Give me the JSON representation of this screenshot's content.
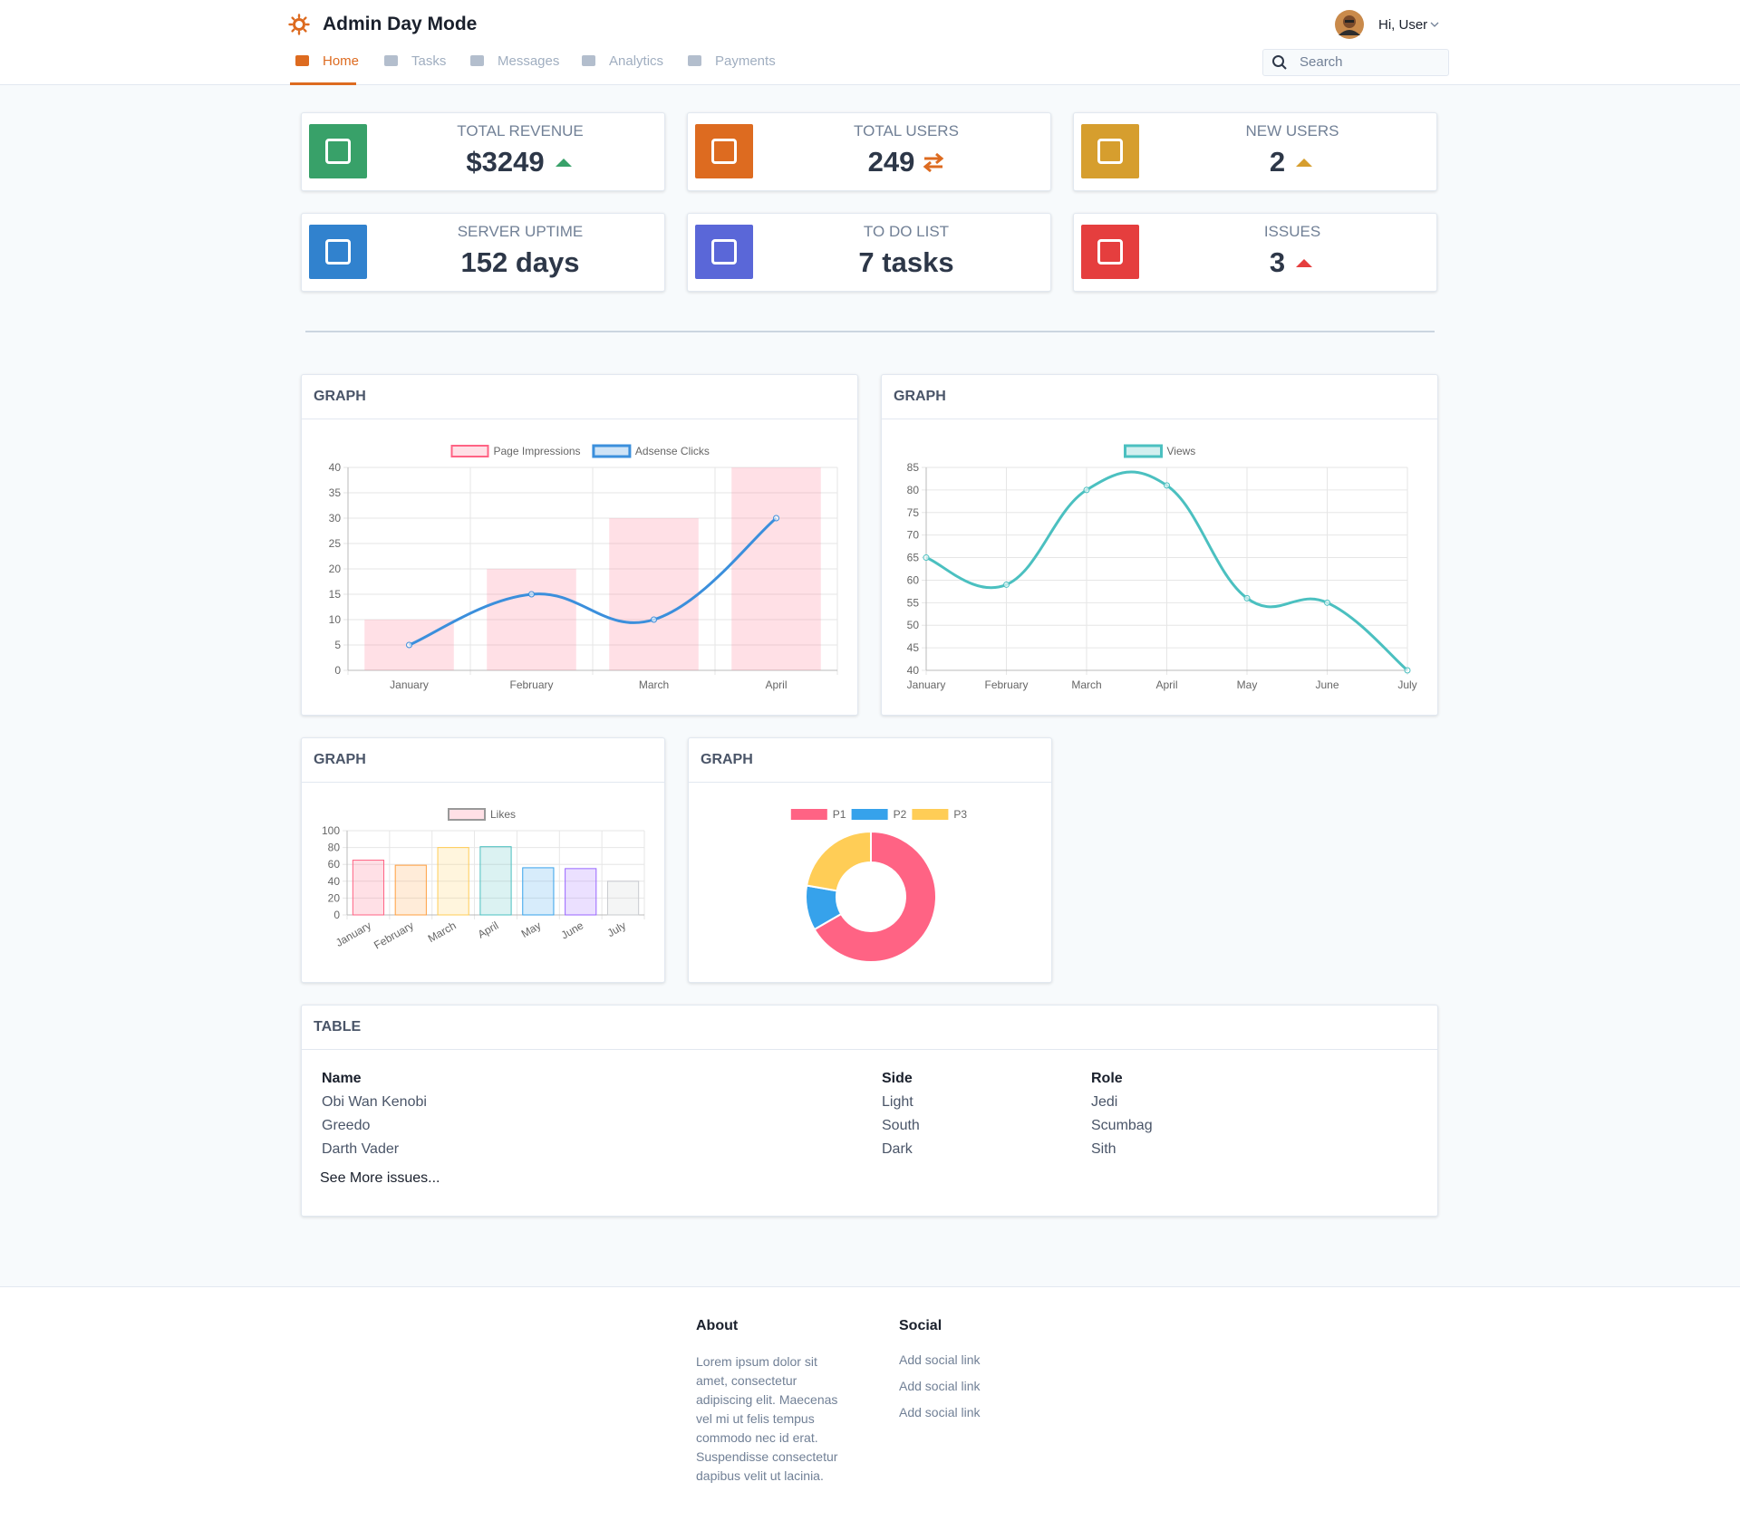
{
  "header": {
    "title": "Admin Day Mode",
    "user": "Hi, User",
    "search_placeholder": "Search"
  },
  "nav": [
    "Home",
    "Tasks",
    "Messages",
    "Analytics",
    "Payments"
  ],
  "stats": [
    {
      "label": "TOTAL REVENUE",
      "value": "$3249"
    },
    {
      "label": "TOTAL USERS",
      "value": "249"
    },
    {
      "label": "NEW USERS",
      "value": "2"
    },
    {
      "label": "SERVER UPTIME",
      "value": "152 days"
    },
    {
      "label": "TO DO LIST",
      "value": "7 tasks"
    },
    {
      "label": "ISSUES",
      "value": "3"
    }
  ],
  "charts": [
    {
      "type": "bar",
      "title": "GRAPH",
      "categories": [
        "January",
        "February",
        "March",
        "April"
      ],
      "series": [
        {
          "name": "Page Impressions",
          "type": "bar",
          "color": "#ff6384",
          "values": [
            10,
            20,
            30,
            40
          ]
        },
        {
          "name": "Adsense Clicks",
          "type": "line",
          "color": "#3b8fdc",
          "values": [
            5,
            15,
            10,
            30
          ]
        }
      ],
      "ylim": [
        0,
        40
      ],
      "yticks": [
        0,
        5,
        10,
        15,
        20,
        25,
        30,
        35,
        40
      ],
      "grid": true
    },
    {
      "type": "line",
      "title": "GRAPH",
      "categories": [
        "January",
        "February",
        "March",
        "April",
        "May",
        "June",
        "July"
      ],
      "series": [
        {
          "name": "Views",
          "color": "#4bc0c0",
          "values": [
            65,
            59,
            80,
            81,
            56,
            55,
            40
          ]
        }
      ],
      "ylim": [
        40,
        85
      ],
      "yticks": [
        40,
        45,
        50,
        55,
        60,
        65,
        70,
        75,
        80,
        85
      ],
      "grid": true
    },
    {
      "type": "bar",
      "title": "GRAPH",
      "categories": [
        "January",
        "February",
        "March",
        "April",
        "May",
        "June",
        "July"
      ],
      "series": [
        {
          "name": "Likes",
          "colors": [
            "#ff6384",
            "#ff9f40",
            "#ffcd56",
            "#4bc0c0",
            "#36a2eb",
            "#9966ff",
            "#c9cbcf"
          ],
          "values": [
            65,
            59,
            80,
            81,
            56,
            55,
            40
          ]
        }
      ],
      "ylim": [
        0,
        100
      ],
      "yticks": [
        0,
        20,
        40,
        60,
        80,
        100
      ],
      "grid": true
    },
    {
      "type": "doughnut",
      "title": "GRAPH",
      "categories": [
        "P1",
        "P2",
        "P3"
      ],
      "values": [
        300,
        50,
        100
      ],
      "colors": [
        "#ff6384",
        "#36a2eb",
        "#ffcd56"
      ]
    }
  ],
  "table": {
    "title": "TABLE",
    "columns": [
      "Name",
      "Side",
      "Role"
    ],
    "rows": [
      [
        "Obi Wan Kenobi",
        "Light",
        "Jedi"
      ],
      [
        "Greedo",
        "South",
        "Scumbag"
      ],
      [
        "Darth Vader",
        "Dark",
        "Sith"
      ]
    ],
    "link": "See More issues..."
  },
  "footer": {
    "about": {
      "title": "About",
      "text": "Lorem ipsum dolor sit amet, consectetur adipiscing elit. Maecenas vel mi ut felis tempus commodo nec id erat. Suspendisse consectetur dapibus velit ut lacinia."
    },
    "social": {
      "title": "Social",
      "links": [
        "Add social link",
        "Add social link",
        "Add social link"
      ]
    }
  }
}
